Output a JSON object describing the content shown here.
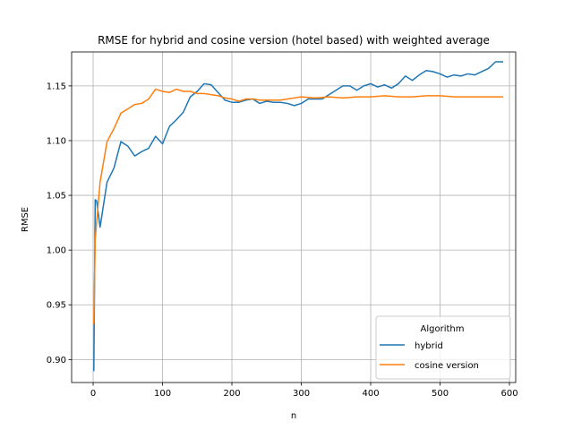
{
  "chart_data": {
    "type": "line",
    "title": "RMSE for hybrid and cosine version (hotel based) with weighted average",
    "xlabel": "n",
    "ylabel": "RMSE",
    "xlim": [
      -31,
      609
    ],
    "ylim": [
      0.879,
      1.181
    ],
    "xticks": [
      0,
      100,
      200,
      300,
      400,
      500,
      600
    ],
    "yticks": [
      0.9,
      0.95,
      1.0,
      1.05,
      1.1,
      1.15
    ],
    "xtick_labels": [
      "0",
      "100",
      "200",
      "300",
      "400",
      "500",
      "600"
    ],
    "ytick_labels": [
      "0.90",
      "0.95",
      "1.00",
      "1.05",
      "1.10",
      "1.15"
    ],
    "grid": true,
    "legend": {
      "title": "Algorithm",
      "placement": "lower-right"
    },
    "series": [
      {
        "name": "hybrid",
        "color": "#1f77b4",
        "x": [
          1,
          3,
          5,
          10,
          20,
          30,
          40,
          50,
          60,
          70,
          80,
          90,
          100,
          110,
          120,
          130,
          140,
          150,
          160,
          170,
          180,
          190,
          200,
          210,
          220,
          230,
          240,
          250,
          260,
          270,
          280,
          290,
          300,
          310,
          320,
          330,
          340,
          350,
          360,
          370,
          380,
          390,
          400,
          410,
          420,
          430,
          440,
          450,
          460,
          470,
          480,
          490,
          500,
          510,
          520,
          530,
          540,
          550,
          560,
          570,
          580,
          590
        ],
        "y": [
          0.89,
          1.046,
          1.045,
          1.021,
          1.062,
          1.075,
          1.099,
          1.095,
          1.086,
          1.09,
          1.093,
          1.104,
          1.097,
          1.113,
          1.119,
          1.126,
          1.14,
          1.145,
          1.152,
          1.151,
          1.144,
          1.137,
          1.135,
          1.135,
          1.137,
          1.138,
          1.134,
          1.136,
          1.135,
          1.135,
          1.134,
          1.132,
          1.134,
          1.138,
          1.138,
          1.138,
          1.142,
          1.146,
          1.15,
          1.15,
          1.146,
          1.15,
          1.152,
          1.149,
          1.151,
          1.148,
          1.152,
          1.159,
          1.155,
          1.16,
          1.164,
          1.163,
          1.161,
          1.158,
          1.16,
          1.159,
          1.161,
          1.16,
          1.163,
          1.166,
          1.172,
          1.172
        ]
      },
      {
        "name": "cosine version",
        "color": "#ff7f0e",
        "x": [
          1,
          3,
          5,
          10,
          20,
          30,
          40,
          50,
          60,
          70,
          80,
          90,
          100,
          110,
          120,
          130,
          140,
          150,
          160,
          170,
          180,
          190,
          200,
          210,
          220,
          230,
          240,
          250,
          260,
          270,
          280,
          290,
          300,
          320,
          340,
          360,
          380,
          400,
          420,
          440,
          460,
          480,
          500,
          520,
          540,
          560,
          580,
          590
        ],
        "y": [
          0.933,
          1.01,
          1.025,
          1.062,
          1.099,
          1.111,
          1.125,
          1.129,
          1.133,
          1.134,
          1.138,
          1.147,
          1.145,
          1.144,
          1.147,
          1.145,
          1.145,
          1.143,
          1.143,
          1.142,
          1.141,
          1.139,
          1.138,
          1.136,
          1.138,
          1.138,
          1.137,
          1.137,
          1.137,
          1.137,
          1.138,
          1.139,
          1.14,
          1.139,
          1.14,
          1.139,
          1.14,
          1.14,
          1.141,
          1.14,
          1.14,
          1.141,
          1.141,
          1.14,
          1.14,
          1.14,
          1.14,
          1.14
        ]
      }
    ]
  }
}
